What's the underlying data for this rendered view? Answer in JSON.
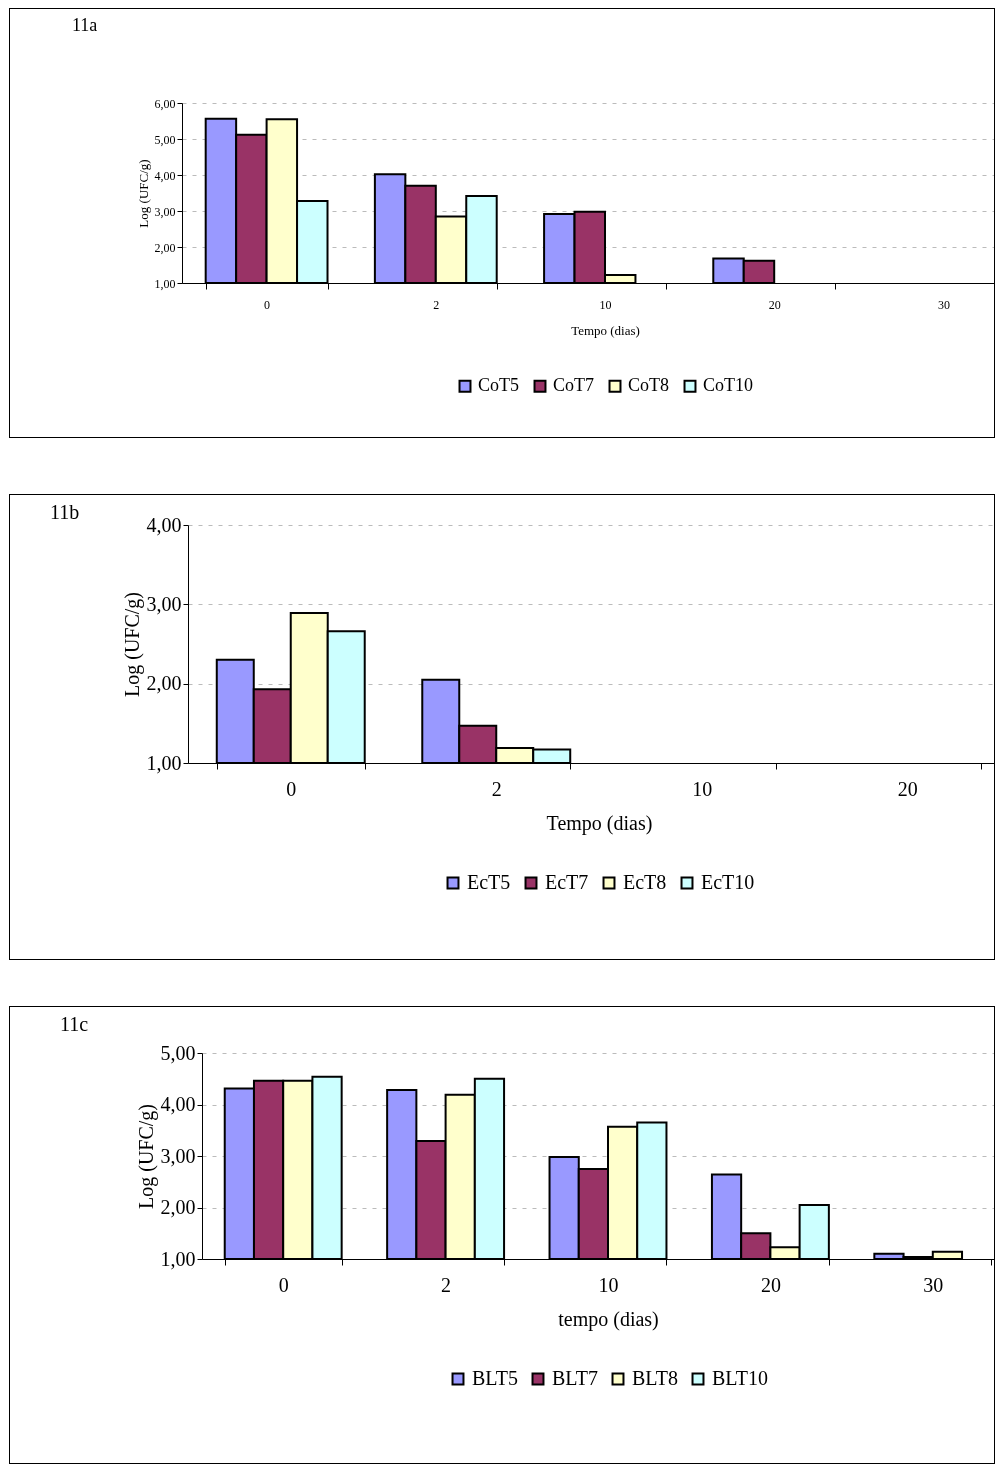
{
  "chart_data": [
    {
      "type": "bar",
      "title": "11a",
      "xlabel": "Tempo (dias)",
      "ylabel": "Log (UFC/g)",
      "categories": [
        "0",
        "2",
        "10",
        "20",
        "30"
      ],
      "series": [
        {
          "name": "CoT5",
          "color": "#9999ff",
          "values": [
            5.56,
            4.02,
            2.92,
            1.68,
            null
          ]
        },
        {
          "name": "CoT7",
          "color": "#993366",
          "values": [
            5.12,
            3.7,
            2.98,
            1.62,
            null
          ]
        },
        {
          "name": "CoT8",
          "color": "#ffffcc",
          "values": [
            5.55,
            2.85,
            1.22,
            null,
            null
          ]
        },
        {
          "name": "CoT10",
          "color": "#ccffff",
          "values": [
            3.28,
            3.42,
            null,
            null,
            null
          ]
        }
      ],
      "ylim": [
        1,
        6
      ],
      "yticks": [
        {
          "value": 1,
          "label": "1,00"
        },
        {
          "value": 2,
          "label": "2,00"
        },
        {
          "value": 3,
          "label": "3,00"
        },
        {
          "value": 4,
          "label": "4,00"
        },
        {
          "value": 5,
          "label": "5,00"
        },
        {
          "value": 6,
          "label": "6,00"
        }
      ],
      "grid": "y",
      "legend": "bottom"
    },
    {
      "type": "bar",
      "title": "11b",
      "xlabel": "Tempo (dias)",
      "ylabel": "Log (UFC/g)",
      "categories": [
        "0",
        "2",
        "10",
        "20"
      ],
      "series": [
        {
          "name": "EcT5",
          "color": "#9999ff",
          "values": [
            2.3,
            2.05,
            null,
            null
          ]
        },
        {
          "name": "EcT7",
          "color": "#993366",
          "values": [
            1.93,
            1.47,
            null,
            null
          ]
        },
        {
          "name": "EcT8",
          "color": "#ffffcc",
          "values": [
            2.89,
            1.19,
            null,
            null
          ]
        },
        {
          "name": "EcT10",
          "color": "#ccffff",
          "values": [
            2.66,
            1.17,
            null,
            null
          ]
        }
      ],
      "ylim": [
        1,
        4
      ],
      "yticks": [
        {
          "value": 1,
          "label": "1,00"
        },
        {
          "value": 2,
          "label": "2,00"
        },
        {
          "value": 3,
          "label": "3,00"
        },
        {
          "value": 4,
          "label": "4,00"
        }
      ],
      "grid": "y",
      "legend": "bottom"
    },
    {
      "type": "bar",
      "title": "11c",
      "xlabel": "tempo (dias)",
      "ylabel": "Log (UFC/g)",
      "categories": [
        "0",
        "2",
        "10",
        "20",
        "30"
      ],
      "series": [
        {
          "name": "BLT5",
          "color": "#9999ff",
          "values": [
            4.31,
            4.28,
            2.98,
            2.64,
            1.1
          ]
        },
        {
          "name": "BLT7",
          "color": "#993366",
          "values": [
            4.46,
            3.29,
            2.75,
            1.5,
            1.04
          ]
        },
        {
          "name": "BLT8",
          "color": "#ffffcc",
          "values": [
            4.46,
            4.19,
            3.57,
            1.23,
            1.14
          ]
        },
        {
          "name": "BLT10",
          "color": "#ccffff",
          "values": [
            4.54,
            4.5,
            3.65,
            2.05,
            null
          ]
        }
      ],
      "ylim": [
        1,
        5
      ],
      "yticks": [
        {
          "value": 1,
          "label": "1,00"
        },
        {
          "value": 2,
          "label": "2,00"
        },
        {
          "value": 3,
          "label": "3,00"
        },
        {
          "value": 4,
          "label": "4,00"
        },
        {
          "value": 5,
          "label": "5,00"
        }
      ],
      "grid": "y",
      "legend": "bottom"
    }
  ]
}
